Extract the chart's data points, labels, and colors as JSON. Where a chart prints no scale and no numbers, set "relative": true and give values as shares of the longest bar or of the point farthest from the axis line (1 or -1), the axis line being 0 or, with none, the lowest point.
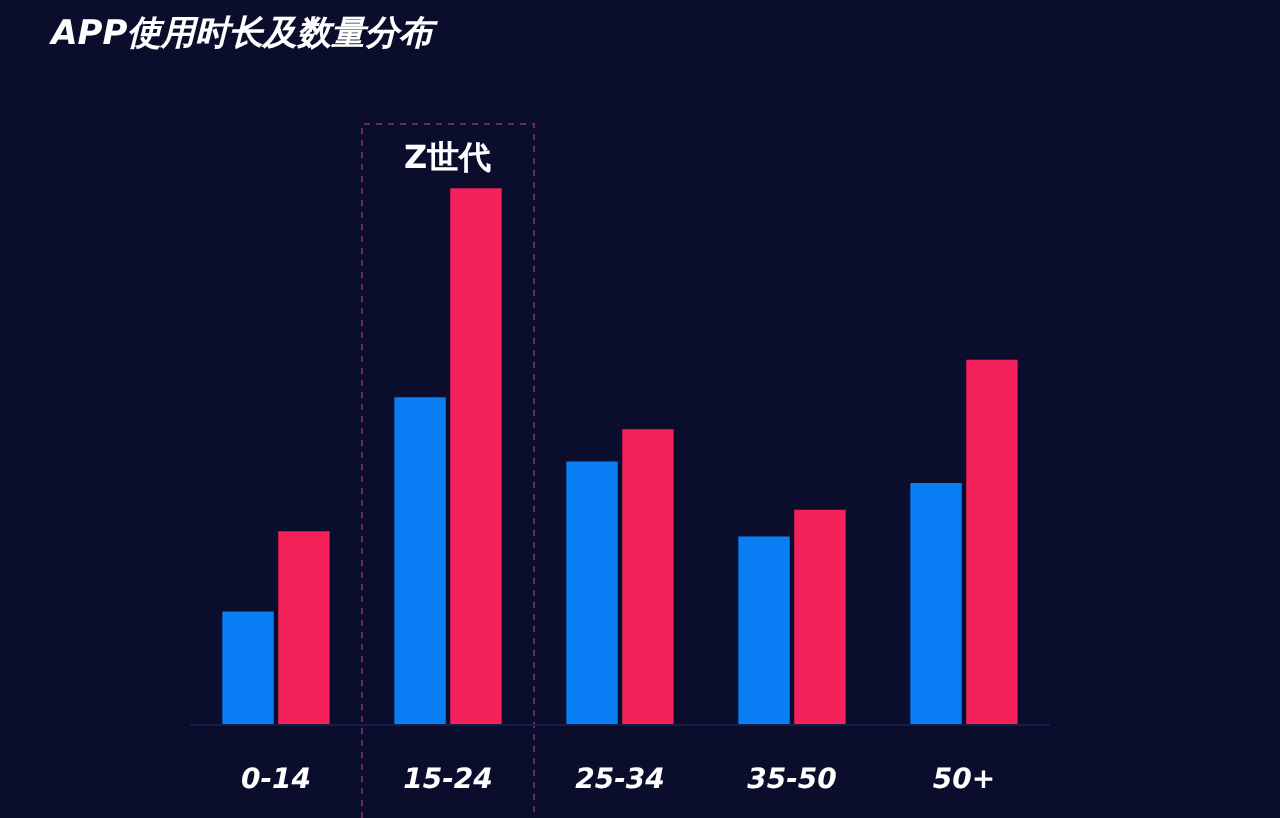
{
  "chart_data": {
    "type": "bar",
    "title": "APP使用时长及数量分布",
    "relative": true,
    "categories": [
      "0-14",
      "15-24",
      "25-34",
      "35-50",
      "50+"
    ],
    "series": [
      {
        "color": "#0a7ff5",
        "values": [
          0.21,
          0.61,
          0.49,
          0.35,
          0.45
        ]
      },
      {
        "color": "#f5215b",
        "values": [
          0.36,
          1,
          0.55,
          0.4,
          0.68
        ]
      }
    ],
    "annotations": [
      "Z世代"
    ],
    "grid": false
  }
}
